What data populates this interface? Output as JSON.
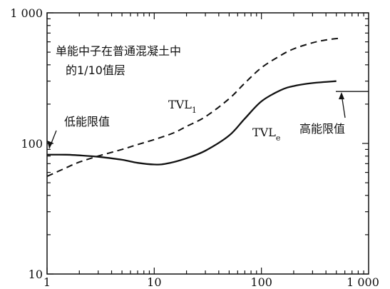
{
  "chart_data": {
    "type": "line",
    "x_scale": "log",
    "y_scale": "log",
    "xlim": [
      1,
      1000
    ],
    "ylim": [
      10,
      1000
    ],
    "x_ticks": [
      {
        "value": 1,
        "label": "1"
      },
      {
        "value": 10,
        "label": "10"
      },
      {
        "value": 100,
        "label": "100"
      },
      {
        "value": 1000,
        "label": "1 000"
      }
    ],
    "y_ticks": [
      {
        "value": 10,
        "label": "10"
      },
      {
        "value": 100,
        "label": "100"
      },
      {
        "value": 1000,
        "label": "1 000"
      }
    ],
    "grid": false,
    "annotations": {
      "title_line1": "单能中子在普通混凝土中",
      "title_line2": "的1/10值层",
      "low_energy_limit": "低能限值",
      "high_energy_limit": "高能限值"
    },
    "series": [
      {
        "name": "TVL",
        "name_sub": "1",
        "style": "dashed",
        "x": [
          1,
          1.5,
          2,
          3,
          5,
          7,
          10,
          15,
          20,
          30,
          50,
          70,
          100,
          150,
          200,
          300,
          400,
          550
        ],
        "y": [
          56,
          65,
          72,
          80,
          90,
          98,
          107,
          120,
          135,
          160,
          220,
          290,
          380,
          470,
          530,
          590,
          620,
          640
        ]
      },
      {
        "name": "TVL",
        "name_sub": "e",
        "style": "solid",
        "x": [
          1,
          1.5,
          2,
          3,
          5,
          7,
          10,
          13,
          20,
          30,
          50,
          70,
          100,
          150,
          200,
          300,
          500
        ],
        "y": [
          82,
          82,
          81,
          79,
          75,
          71,
          69,
          70,
          77,
          88,
          115,
          155,
          210,
          255,
          275,
          290,
          300
        ]
      }
    ],
    "high_energy_limit_value": 250
  }
}
